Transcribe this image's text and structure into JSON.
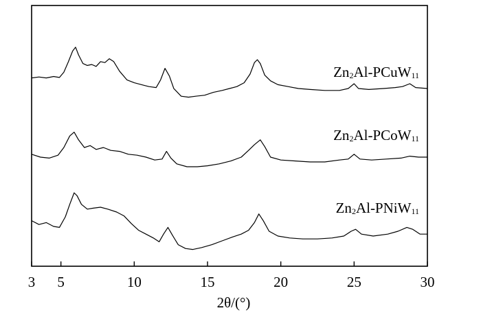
{
  "chart_data": {
    "type": "line",
    "title": "",
    "xlabel": "2θ/(°)",
    "ylabel": "",
    "xlim": [
      3,
      30
    ],
    "ylim": [
      0,
      4.5
    ],
    "yticks_shown": false,
    "grid": false,
    "xticks": [
      3,
      5,
      10,
      15,
      20,
      25,
      30
    ],
    "series": [
      {
        "name_main": "Zn",
        "name_sub1": "2",
        "name_mid": "Al-PCuW",
        "name_sub2": "11",
        "points": [
          [
            3,
            0.52
          ],
          [
            3.5,
            0.54
          ],
          [
            4,
            0.52
          ],
          [
            4.5,
            0.55
          ],
          [
            4.9,
            0.53
          ],
          [
            5.2,
            0.64
          ],
          [
            5.5,
            0.85
          ],
          [
            5.8,
            1.08
          ],
          [
            6.0,
            1.16
          ],
          [
            6.2,
            1.0
          ],
          [
            6.5,
            0.82
          ],
          [
            6.8,
            0.78
          ],
          [
            7.1,
            0.8
          ],
          [
            7.4,
            0.76
          ],
          [
            7.7,
            0.86
          ],
          [
            8.0,
            0.84
          ],
          [
            8.3,
            0.92
          ],
          [
            8.6,
            0.86
          ],
          [
            9.0,
            0.66
          ],
          [
            9.5,
            0.48
          ],
          [
            10,
            0.42
          ],
          [
            10.5,
            0.38
          ],
          [
            11,
            0.34
          ],
          [
            11.5,
            0.32
          ],
          [
            11.8,
            0.48
          ],
          [
            12.1,
            0.72
          ],
          [
            12.4,
            0.56
          ],
          [
            12.7,
            0.3
          ],
          [
            13.2,
            0.14
          ],
          [
            13.7,
            0.12
          ],
          [
            14.2,
            0.14
          ],
          [
            14.8,
            0.16
          ],
          [
            15.4,
            0.22
          ],
          [
            16,
            0.26
          ],
          [
            16.5,
            0.3
          ],
          [
            17,
            0.34
          ],
          [
            17.5,
            0.42
          ],
          [
            17.9,
            0.6
          ],
          [
            18.2,
            0.84
          ],
          [
            18.4,
            0.9
          ],
          [
            18.6,
            0.82
          ],
          [
            18.9,
            0.58
          ],
          [
            19.3,
            0.46
          ],
          [
            19.8,
            0.38
          ],
          [
            20.5,
            0.34
          ],
          [
            21.2,
            0.3
          ],
          [
            22,
            0.28
          ],
          [
            23,
            0.26
          ],
          [
            24,
            0.26
          ],
          [
            24.6,
            0.3
          ],
          [
            25.0,
            0.4
          ],
          [
            25.3,
            0.3
          ],
          [
            26,
            0.28
          ],
          [
            27,
            0.3
          ],
          [
            27.8,
            0.32
          ],
          [
            28.3,
            0.34
          ],
          [
            28.8,
            0.4
          ],
          [
            29.2,
            0.32
          ],
          [
            30,
            0.3
          ]
        ]
      },
      {
        "name_main": "Zn",
        "name_sub1": "2",
        "name_mid": "Al-PCoW",
        "name_sub2": "11",
        "points": [
          [
            3,
            0.36
          ],
          [
            3.6,
            0.3
          ],
          [
            4.2,
            0.28
          ],
          [
            4.8,
            0.34
          ],
          [
            5.2,
            0.5
          ],
          [
            5.6,
            0.74
          ],
          [
            5.9,
            0.82
          ],
          [
            6.2,
            0.66
          ],
          [
            6.6,
            0.5
          ],
          [
            7.0,
            0.54
          ],
          [
            7.4,
            0.46
          ],
          [
            7.9,
            0.5
          ],
          [
            8.4,
            0.44
          ],
          [
            9,
            0.42
          ],
          [
            9.6,
            0.36
          ],
          [
            10.2,
            0.34
          ],
          [
            10.8,
            0.3
          ],
          [
            11.4,
            0.24
          ],
          [
            11.9,
            0.26
          ],
          [
            12.2,
            0.42
          ],
          [
            12.5,
            0.28
          ],
          [
            12.9,
            0.16
          ],
          [
            13.6,
            0.1
          ],
          [
            14.3,
            0.1
          ],
          [
            15,
            0.12
          ],
          [
            15.8,
            0.16
          ],
          [
            16.6,
            0.22
          ],
          [
            17.3,
            0.3
          ],
          [
            17.8,
            0.44
          ],
          [
            18.2,
            0.56
          ],
          [
            18.6,
            0.66
          ],
          [
            18.9,
            0.52
          ],
          [
            19.3,
            0.3
          ],
          [
            20,
            0.24
          ],
          [
            21,
            0.22
          ],
          [
            22,
            0.2
          ],
          [
            23,
            0.2
          ],
          [
            24,
            0.24
          ],
          [
            24.6,
            0.26
          ],
          [
            25.0,
            0.36
          ],
          [
            25.4,
            0.26
          ],
          [
            26.2,
            0.24
          ],
          [
            27.2,
            0.26
          ],
          [
            28.2,
            0.28
          ],
          [
            28.8,
            0.32
          ],
          [
            29.4,
            0.3
          ],
          [
            30,
            0.3
          ]
        ]
      },
      {
        "name_main": "Zn",
        "name_sub1": "2",
        "name_mid": "Al-PNiW",
        "name_sub2": "11",
        "points": [
          [
            3,
            0.62
          ],
          [
            3.5,
            0.54
          ],
          [
            4,
            0.58
          ],
          [
            4.5,
            0.5
          ],
          [
            4.9,
            0.48
          ],
          [
            5.3,
            0.7
          ],
          [
            5.6,
            0.96
          ],
          [
            5.9,
            1.2
          ],
          [
            6.1,
            1.14
          ],
          [
            6.4,
            0.96
          ],
          [
            6.8,
            0.86
          ],
          [
            7.2,
            0.88
          ],
          [
            7.7,
            0.9
          ],
          [
            8.2,
            0.86
          ],
          [
            8.8,
            0.8
          ],
          [
            9.3,
            0.72
          ],
          [
            9.8,
            0.56
          ],
          [
            10.3,
            0.42
          ],
          [
            10.8,
            0.34
          ],
          [
            11.3,
            0.26
          ],
          [
            11.7,
            0.18
          ],
          [
            12.0,
            0.34
          ],
          [
            12.3,
            0.48
          ],
          [
            12.6,
            0.32
          ],
          [
            13.0,
            0.12
          ],
          [
            13.5,
            0.04
          ],
          [
            14.0,
            0.02
          ],
          [
            14.6,
            0.06
          ],
          [
            15.3,
            0.12
          ],
          [
            16,
            0.2
          ],
          [
            16.7,
            0.28
          ],
          [
            17.3,
            0.34
          ],
          [
            17.8,
            0.42
          ],
          [
            18.2,
            0.58
          ],
          [
            18.5,
            0.76
          ],
          [
            18.8,
            0.62
          ],
          [
            19.2,
            0.4
          ],
          [
            19.8,
            0.3
          ],
          [
            20.6,
            0.26
          ],
          [
            21.5,
            0.24
          ],
          [
            22.5,
            0.24
          ],
          [
            23.5,
            0.26
          ],
          [
            24.3,
            0.3
          ],
          [
            24.8,
            0.4
          ],
          [
            25.1,
            0.44
          ],
          [
            25.5,
            0.34
          ],
          [
            26.3,
            0.3
          ],
          [
            27.3,
            0.34
          ],
          [
            28.0,
            0.4
          ],
          [
            28.6,
            0.48
          ],
          [
            29.0,
            0.44
          ],
          [
            29.5,
            0.34
          ],
          [
            30,
            0.34
          ]
        ]
      }
    ]
  }
}
